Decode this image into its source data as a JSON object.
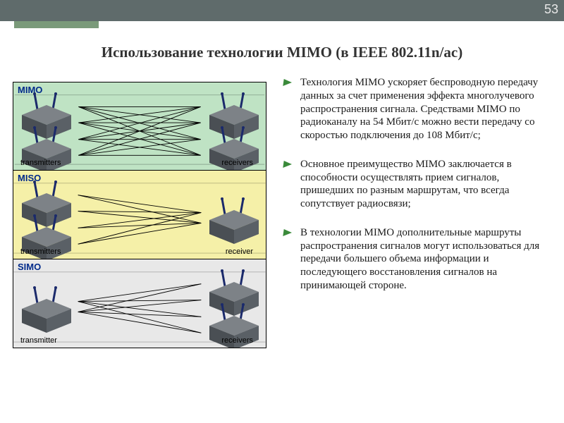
{
  "page_number": "53",
  "title": "Использование технологии MIMO (в IEEE 802.11n/ac)",
  "bullets": [
    "Технология MIMO ускоряет беспроводную передачу данных за счет применения эффекта многолучевого распространения сигнала. Средствами MIMO по радиоканалу на 54 Мбит/с можно вести передачу со скоростью подключения до 108 Мбит/с;",
    "Основное преимущество MIMO заключается в способности осуществлять прием сигналов, пришедших по разным маршрутам, что всегда сопутствует радиосвязи;",
    "В технологии MIMO дополнительные маршруты распространения сигналов могут использоваться для передачи большего объема информации и последующего восстановления сигналов на принимающей стороне."
  ],
  "panels": [
    {
      "label": "MIMO",
      "bg": "#bfe3c4",
      "tx_count": 2,
      "rx_count": 2,
      "tx_label": "transmitters",
      "rx_label": "receivers",
      "rays": [
        [
          92,
          35,
          268,
          35
        ],
        [
          92,
          35,
          268,
          58
        ],
        [
          92,
          35,
          268,
          82
        ],
        [
          92,
          35,
          268,
          105
        ],
        [
          92,
          58,
          268,
          35
        ],
        [
          92,
          58,
          268,
          58
        ],
        [
          92,
          58,
          268,
          82
        ],
        [
          92,
          58,
          268,
          105
        ],
        [
          92,
          82,
          268,
          35
        ],
        [
          92,
          82,
          268,
          58
        ],
        [
          92,
          82,
          268,
          82
        ],
        [
          92,
          82,
          268,
          105
        ],
        [
          92,
          105,
          268,
          35
        ],
        [
          92,
          105,
          268,
          58
        ],
        [
          92,
          105,
          268,
          82
        ],
        [
          92,
          105,
          268,
          105
        ]
      ]
    },
    {
      "label": "MISO",
      "bg": "#f5f0a8",
      "tx_count": 2,
      "rx_count": 1,
      "tx_label": "transmitters",
      "rx_label": "receiver",
      "rays": [
        [
          92,
          35,
          268,
          60
        ],
        [
          92,
          35,
          268,
          75
        ],
        [
          92,
          58,
          268,
          60
        ],
        [
          92,
          58,
          268,
          75
        ],
        [
          92,
          82,
          268,
          60
        ],
        [
          92,
          82,
          268,
          75
        ],
        [
          92,
          105,
          268,
          60
        ],
        [
          92,
          105,
          268,
          75
        ]
      ]
    },
    {
      "label": "SIMO",
      "bg": "#e8e8e8",
      "tx_count": 1,
      "rx_count": 2,
      "tx_label": "transmitter",
      "rx_label": "receivers",
      "rays": [
        [
          92,
          60,
          268,
          35
        ],
        [
          92,
          60,
          268,
          58
        ],
        [
          92,
          60,
          268,
          82
        ],
        [
          92,
          60,
          268,
          105
        ],
        [
          92,
          75,
          268,
          35
        ],
        [
          92,
          75,
          268,
          58
        ],
        [
          92,
          75,
          268,
          82
        ],
        [
          92,
          75,
          268,
          105
        ]
      ]
    }
  ],
  "colors": {
    "topbar": "#5f6b6b",
    "accent_strip": "#7a9a7a",
    "bullet_arrow": "#3a8a3a",
    "device_top": "#7d8287",
    "device_side": "#4a4f54",
    "device_front": "#5a6066",
    "antenna": "#1b2a6b"
  }
}
